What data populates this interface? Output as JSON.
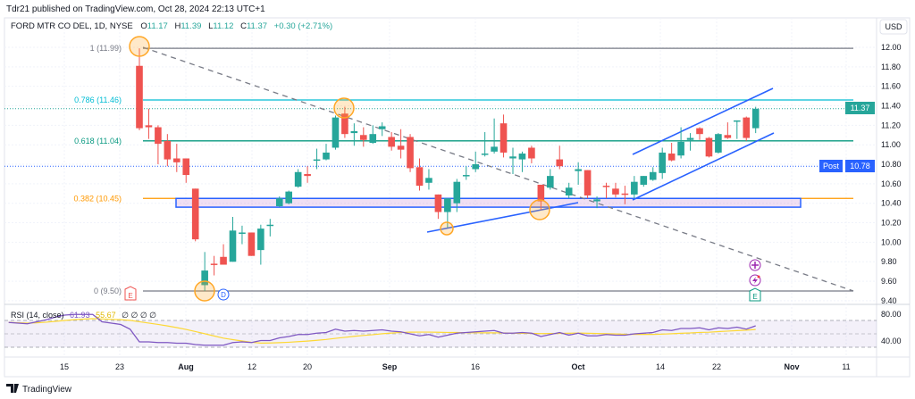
{
  "header": {
    "published": "Tdr21 published on TradingView.com, Oct 28, 2024 22:13 UTC+1"
  },
  "legend": {
    "symbol": "FORD MTR CO DEL, 1D, NYSE",
    "o_label": "O",
    "o": "11.17",
    "h_label": "H",
    "h": "11.39",
    "l_label": "L",
    "l": "11.12",
    "c_label": "C",
    "c": "11.37",
    "change": "+0.30 (+2.71%)"
  },
  "price_axis": {
    "currency": "USD",
    "ticks": [
      "12.00",
      "11.80",
      "11.60",
      "11.40",
      "11.20",
      "11.00",
      "10.80",
      "10.60",
      "10.40",
      "10.20",
      "10.00",
      "9.80",
      "9.60",
      "9.40"
    ],
    "last_price": "11.37",
    "post_label": "Post",
    "post_price": "10.78"
  },
  "fib_levels": [
    {
      "label": "1 (11.99)",
      "price": 11.99,
      "color": "#787b86"
    },
    {
      "label": "0.786 (11.46)",
      "price": 11.46,
      "color": "#00bcd4"
    },
    {
      "label": "0.618 (11.04)",
      "price": 11.04,
      "color": "#089981"
    },
    {
      "label": "0.382 (10.45)",
      "price": 10.45,
      "color": "#ff9800"
    },
    {
      "label": "0 (9.50)",
      "price": 9.5,
      "color": "#787b86"
    }
  ],
  "zone": {
    "top": 10.45,
    "bottom": 10.36
  },
  "markers": {
    "earnings": "E",
    "dividend": "D",
    "earnings_upcoming": "E"
  },
  "rsi": {
    "label": "RSI (14, close)",
    "value": "61.93",
    "ma_value": "55.67",
    "extra": "∅ ∅ ∅ ∅",
    "ticks": [
      "80.00",
      "40.00"
    ],
    "values": [
      67,
      66,
      65,
      68,
      71,
      75,
      78,
      79,
      79,
      79,
      68,
      66,
      64,
      57,
      38,
      38,
      37,
      37,
      36,
      36,
      34,
      33,
      33,
      33,
      37,
      38,
      37,
      40,
      40,
      44,
      46,
      49,
      49,
      51,
      52,
      57,
      54,
      55,
      54,
      55,
      56,
      54,
      53,
      50,
      47,
      49,
      45,
      48,
      51,
      52,
      53,
      54,
      55,
      51,
      51,
      52,
      51,
      46,
      49,
      52,
      48,
      51,
      47,
      47,
      49,
      48,
      48,
      50,
      51,
      52,
      56,
      55,
      58,
      58,
      59,
      56,
      59,
      58,
      60,
      57,
      62
    ]
  },
  "time_axis": [
    "15",
    "23",
    "Aug",
    "12",
    "20",
    "Sep",
    "16",
    "Oct",
    "14",
    "22",
    "Nov",
    "11"
  ],
  "footer": {
    "brand": "TradingView"
  },
  "colors": {
    "up": "#26a69a",
    "down": "#ef5350",
    "accent": "#2962ff",
    "rsi": "#7e57c2",
    "rsi_ma": "#fdd835"
  },
  "chart_data": {
    "type": "candlestick",
    "title": "FORD MTR CO DEL, 1D, NYSE",
    "ylabel": "USD",
    "ylim": [
      9.4,
      12.0
    ],
    "ohlc": [
      [
        11.81,
        11.99,
        11.15,
        11.17
      ],
      [
        11.2,
        11.37,
        11.06,
        11.18
      ],
      [
        11.18,
        11.2,
        10.8,
        11.01
      ],
      [
        11.04,
        11.11,
        10.78,
        10.85
      ],
      [
        10.86,
        11.01,
        10.72,
        10.82
      ],
      [
        10.86,
        10.86,
        10.61,
        10.69
      ],
      [
        10.55,
        10.55,
        10.01,
        10.03
      ],
      [
        9.56,
        9.9,
        9.5,
        9.71
      ],
      [
        9.78,
        9.86,
        9.66,
        9.77
      ],
      [
        9.85,
        9.98,
        9.77,
        9.77
      ],
      [
        9.8,
        10.26,
        9.8,
        10.12
      ],
      [
        10.09,
        10.17,
        9.98,
        10.1
      ],
      [
        10.1,
        10.1,
        9.86,
        9.86
      ],
      [
        9.92,
        10.18,
        9.77,
        10.14
      ],
      [
        10.17,
        10.24,
        10.06,
        10.18
      ],
      [
        10.37,
        10.47,
        10.36,
        10.45
      ],
      [
        10.4,
        10.53,
        10.39,
        10.52
      ],
      [
        10.57,
        10.75,
        10.56,
        10.72
      ],
      [
        10.7,
        10.78,
        10.61,
        10.68
      ],
      [
        10.84,
        10.96,
        10.75,
        10.85
      ],
      [
        10.85,
        11.01,
        10.84,
        10.92
      ],
      [
        10.97,
        11.3,
        10.95,
        11.28
      ],
      [
        11.32,
        11.39,
        11.07,
        11.11
      ],
      [
        11.12,
        11.22,
        10.99,
        11.14
      ],
      [
        11.1,
        11.18,
        10.98,
        11.05
      ],
      [
        11.02,
        11.2,
        11.01,
        11.11
      ],
      [
        11.16,
        11.23,
        11.09,
        11.19
      ],
      [
        11.08,
        11.13,
        10.94,
        10.98
      ],
      [
        10.99,
        11.16,
        10.86,
        10.95
      ],
      [
        11.08,
        11.11,
        10.72,
        10.76
      ],
      [
        10.77,
        10.86,
        10.53,
        10.58
      ],
      [
        10.61,
        10.75,
        10.54,
        10.66
      ],
      [
        10.49,
        10.49,
        10.24,
        10.31
      ],
      [
        10.31,
        10.45,
        10.15,
        10.45
      ],
      [
        10.4,
        10.65,
        10.31,
        10.62
      ],
      [
        10.68,
        10.78,
        10.64,
        10.69
      ],
      [
        10.75,
        10.93,
        10.72,
        10.8
      ],
      [
        10.9,
        11.13,
        10.88,
        10.91
      ],
      [
        10.93,
        11.27,
        10.91,
        10.98
      ],
      [
        11.22,
        11.31,
        10.87,
        10.92
      ],
      [
        10.86,
        10.97,
        10.7,
        10.88
      ],
      [
        10.85,
        10.93,
        10.72,
        10.91
      ],
      [
        10.97,
        10.99,
        10.81,
        10.86
      ],
      [
        10.59,
        10.59,
        10.33,
        10.42
      ],
      [
        10.56,
        10.75,
        10.54,
        10.68
      ],
      [
        10.85,
        10.99,
        10.75,
        10.78
      ],
      [
        10.48,
        10.61,
        10.45,
        10.56
      ],
      [
        10.73,
        10.82,
        10.59,
        10.75
      ],
      [
        10.74,
        10.74,
        10.45,
        10.48
      ],
      [
        10.42,
        10.47,
        10.35,
        10.44
      ],
      [
        10.58,
        10.61,
        10.45,
        10.57
      ],
      [
        10.55,
        10.61,
        10.46,
        10.49
      ],
      [
        10.5,
        10.58,
        10.39,
        10.49
      ],
      [
        10.49,
        10.68,
        10.45,
        10.62
      ],
      [
        10.59,
        10.68,
        10.57,
        10.68
      ],
      [
        10.64,
        10.77,
        10.63,
        10.72
      ],
      [
        10.71,
        10.97,
        10.65,
        10.92
      ],
      [
        10.91,
        11.02,
        10.83,
        10.84
      ],
      [
        10.89,
        11.18,
        10.86,
        11.03
      ],
      [
        11.05,
        11.12,
        10.94,
        11.07
      ],
      [
        11.17,
        11.18,
        11.05,
        11.11
      ],
      [
        11.07,
        11.08,
        10.87,
        10.88
      ],
      [
        10.92,
        11.12,
        10.91,
        11.11
      ],
      [
        11.1,
        11.23,
        11.06,
        11.07
      ],
      [
        11.24,
        11.25,
        11.06,
        11.25
      ],
      [
        11.28,
        11.29,
        11.04,
        11.07
      ],
      [
        11.17,
        11.39,
        11.12,
        11.37
      ]
    ]
  }
}
